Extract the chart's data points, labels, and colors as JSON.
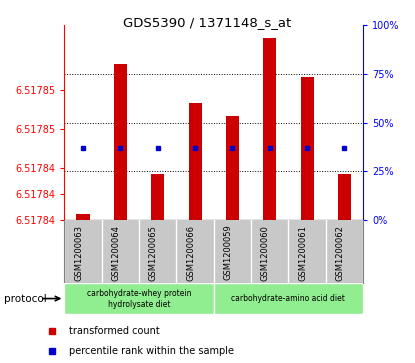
{
  "title": "GDS5390 / 1371148_s_at",
  "samples": [
    "GSM1200063",
    "GSM1200064",
    "GSM1200065",
    "GSM1200066",
    "GSM1200059",
    "GSM1200060",
    "GSM1200061",
    "GSM1200062"
  ],
  "transformed_counts": [
    6.5178404,
    6.517852,
    6.5178435,
    6.517849,
    6.517848,
    6.517854,
    6.517851,
    6.5178435
  ],
  "percentile_ranks_pct": [
    37,
    37,
    37,
    37,
    37,
    37,
    37,
    37
  ],
  "y_min": 6.51784,
  "y_max": 6.517855,
  "left_yticks": [
    6.51784,
    6.517842,
    6.517844,
    6.517847,
    6.51785
  ],
  "left_yticklabels": [
    "6.51784",
    "6.51784",
    "6.51784",
    "6.51785",
    "6.51785"
  ],
  "right_yticks_pct": [
    0,
    25,
    50,
    75,
    100
  ],
  "grid_pct": [
    25,
    50,
    75
  ],
  "bar_color": "#CC0000",
  "percentile_color": "#0000CC",
  "bar_width": 0.35,
  "protocol_group1_label": "carbohydrate-whey protein\nhydrolysate diet",
  "protocol_group2_label": "carbohydrate-amino acid diet",
  "protocol_color": "#90EE90",
  "label_box_color": "#C8C8C8",
  "legend_label1": "transformed count",
  "legend_label2": "percentile rank within the sample",
  "protocol_text": "protocol"
}
